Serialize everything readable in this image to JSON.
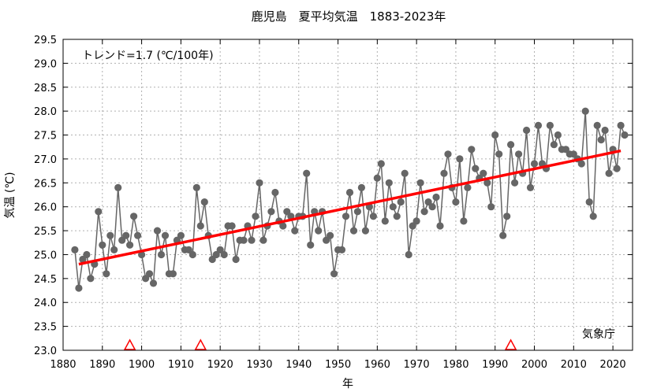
{
  "chart_data": {
    "type": "line",
    "title": "鹿児島　夏平均気温　1883-2023年",
    "xlabel": "年",
    "ylabel": "気温 (℃)",
    "trend_text": "トレンド=1.7 (℃/100年)",
    "source_text": "気象庁",
    "xlim": [
      1880,
      2025
    ],
    "ylim": [
      23.0,
      29.5
    ],
    "x_ticks": [
      1880,
      1890,
      1900,
      1910,
      1920,
      1930,
      1940,
      1950,
      1960,
      1970,
      1980,
      1990,
      2000,
      2010,
      2020
    ],
    "y_ticks": [
      "23.0",
      "23.5",
      "24.0",
      "24.5",
      "25.0",
      "25.5",
      "26.0",
      "26.5",
      "27.0",
      "27.5",
      "28.0",
      "28.5",
      "29.0",
      "29.5"
    ],
    "grid": true,
    "colors": {
      "series": "#666666",
      "trend": "#ff0000",
      "marker": "#ff0000",
      "grid": "#b0b0b0",
      "frame": "#000000"
    },
    "series": [
      {
        "x_start": 1883,
        "values": [
          25.1,
          24.3,
          24.9,
          25.0,
          24.5,
          24.8,
          25.9,
          25.2,
          24.6,
          25.4,
          25.1,
          26.4,
          25.3,
          25.4,
          25.2,
          25.8,
          25.4,
          25.0,
          24.5,
          24.6,
          24.4,
          25.5,
          25.0,
          25.4,
          24.6,
          24.6,
          25.3,
          25.4,
          25.1,
          25.1,
          25.0,
          26.4,
          25.6,
          26.1,
          25.4,
          24.9,
          25.0,
          25.1,
          25.0,
          25.6,
          25.6,
          24.9,
          25.3,
          25.3,
          25.6,
          25.3,
          25.8,
          26.5,
          25.3,
          25.6,
          25.9,
          26.3,
          25.7,
          25.6,
          25.9,
          25.8,
          25.5,
          25.8,
          25.8,
          26.7,
          25.2,
          25.9,
          25.5,
          25.9,
          25.3,
          25.4,
          24.6,
          25.1,
          25.1,
          25.8,
          26.3,
          25.5,
          25.9,
          26.4,
          25.5,
          26.0,
          25.8,
          26.6,
          26.9,
          25.7,
          26.5,
          26.0,
          25.8,
          26.1,
          26.7,
          25.0,
          25.6,
          25.7,
          26.5,
          25.9,
          26.1,
          26.0,
          26.2,
          25.6,
          26.7,
          27.1,
          26.4,
          26.1,
          27.0,
          25.7,
          26.4,
          27.2,
          26.8,
          26.6,
          26.7,
          26.5,
          26.0,
          27.5,
          27.1,
          25.4,
          25.8,
          27.3,
          26.5,
          27.1,
          26.7,
          27.6,
          26.4,
          26.9,
          27.7,
          26.9,
          26.8,
          27.7,
          27.3,
          27.5,
          27.2,
          27.2,
          27.1,
          27.1,
          27.0,
          26.9,
          28.0,
          26.1,
          25.8,
          27.7,
          27.4,
          27.6,
          26.7,
          27.2,
          26.8,
          27.7,
          27.5
        ]
      }
    ],
    "trend": {
      "x": [
        1884,
        2022
      ],
      "y": [
        24.8,
        27.17
      ]
    },
    "station_change_years": [
      1897,
      1915,
      1994
    ]
  }
}
